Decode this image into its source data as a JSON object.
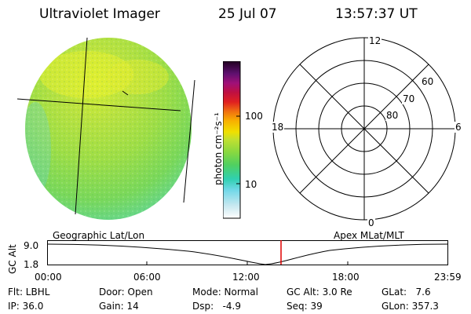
{
  "header": {
    "title": "Ultraviolet Imager",
    "date": "25 Jul 07",
    "time": "13:57:37 UT"
  },
  "colorbar": {
    "unit_label": "photon cm⁻²s⁻¹",
    "ticks": [
      "100",
      "10"
    ]
  },
  "polar": {
    "mlt_labels": {
      "top": "12",
      "left": "18",
      "right": "6",
      "bottom": "0"
    },
    "lat_labels": [
      "60",
      "70",
      "80"
    ]
  },
  "timeline": {
    "left_label": "Geographic Lat/Lon",
    "right_label": "Apex MLat/MLT",
    "axis_title": "GC Alt",
    "y_ticks": [
      "9.0",
      "1.8"
    ],
    "x_ticks": [
      "00:00",
      "06:00",
      "12:00",
      "18:00",
      "23:59"
    ],
    "marker_time": "13:57:37",
    "colors": {
      "marker": "#e00000"
    }
  },
  "status": {
    "flt": "Flt: LBHL",
    "door": "Door: Open",
    "mode": "Mode: Normal",
    "gc_alt": "GC Alt: 3.0 Re",
    "glat": "GLat:   7.6",
    "ip": "IP: 36.0",
    "gain": "Gain: 14",
    "dsp": "Dsp:   -4.9",
    "seq": "Seq: 39",
    "glon": "GLon: 357.3"
  }
}
